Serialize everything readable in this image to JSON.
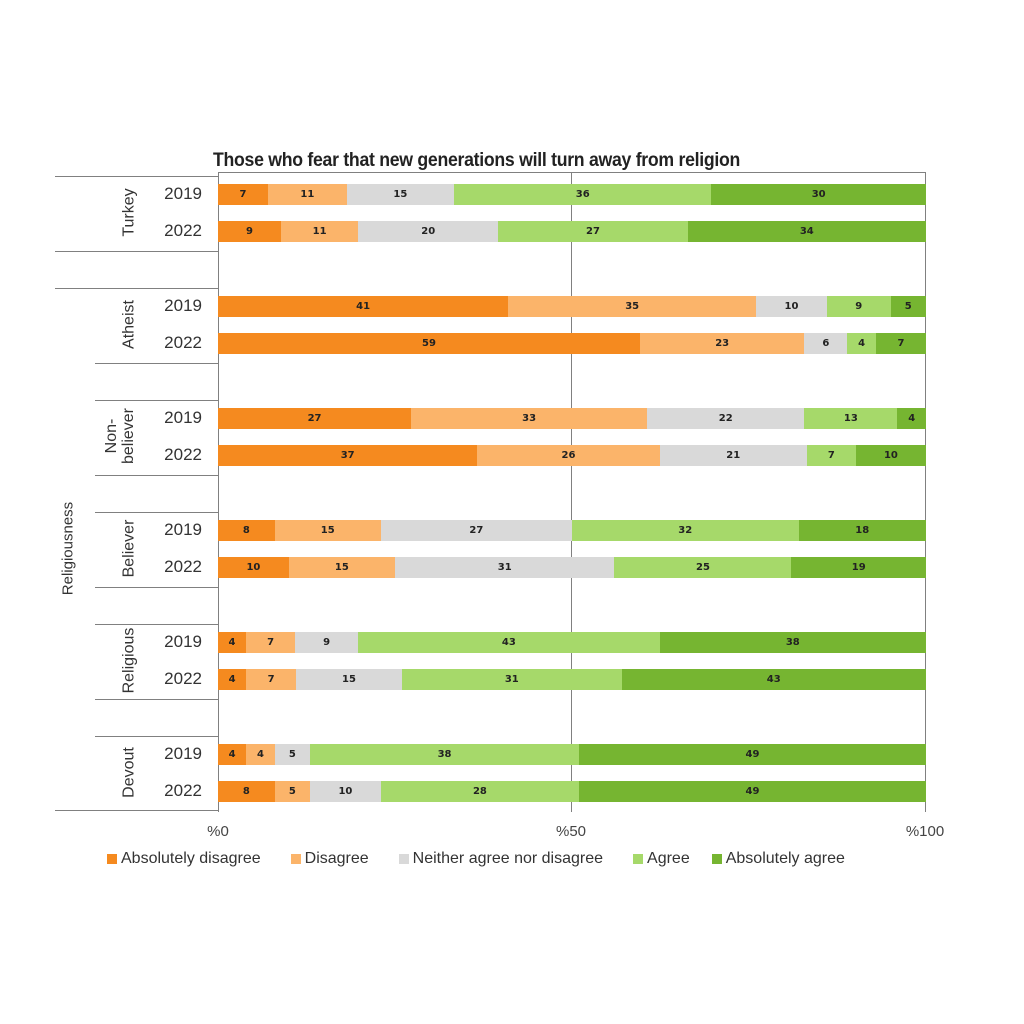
{
  "chart_data": {
    "type": "bar",
    "orientation": "horizontal",
    "stacked": true,
    "percent": true,
    "title": "Those who fear that new generations will turn away from religion",
    "xlabel": "",
    "ylabel": "Religiousness",
    "xlim": [
      0,
      100
    ],
    "x_ticks": [
      "%0",
      "%50",
      "%100"
    ],
    "legend_position": "bottom",
    "groups": [
      "Turkey",
      "Atheist",
      "Non-believer",
      "Believer",
      "Religious",
      "Devout"
    ],
    "categories": [
      "Turkey 2019",
      "Turkey 2022",
      "Atheist 2019",
      "Atheist 2022",
      "Non-believer 2019",
      "Non-believer 2022",
      "Believer 2019",
      "Believer 2022",
      "Religious 2019",
      "Religious 2022",
      "Devout 2019",
      "Devout 2022"
    ],
    "series": [
      {
        "name": "Absolutely disagree",
        "color": "#F58A1F",
        "values": [
          7,
          9,
          41,
          59,
          27,
          37,
          8,
          10,
          4,
          4,
          4,
          8
        ]
      },
      {
        "name": "Disagree",
        "color": "#FBB46A",
        "values": [
          11,
          11,
          35,
          23,
          33,
          26,
          15,
          15,
          7,
          7,
          4,
          5
        ]
      },
      {
        "name": "Neither agree nor disagree",
        "color": "#D9D9D9",
        "values": [
          15,
          20,
          10,
          6,
          22,
          21,
          27,
          31,
          9,
          15,
          5,
          10
        ]
      },
      {
        "name": "Agree",
        "color": "#A6D96A",
        "values": [
          36,
          27,
          9,
          4,
          13,
          7,
          32,
          25,
          43,
          31,
          38,
          28
        ]
      },
      {
        "name": "Absolutely agree",
        "color": "#76B531",
        "values": [
          30,
          34,
          5,
          7,
          4,
          10,
          18,
          19,
          38,
          43,
          49,
          49
        ]
      }
    ]
  },
  "title": "Those who fear that new generations will turn away from religion",
  "ylabel": "Religiousness",
  "ticks": [
    "%0",
    "%50",
    "%100"
  ],
  "group_labels": {
    "turkey": "Turkey",
    "atheist": "Atheist",
    "nonbeliever_1": "Non-",
    "nonbeliever_2": "believer",
    "believer": "Believer",
    "religious": "Religious",
    "devout": "Devout"
  },
  "years": [
    "2019",
    "2022"
  ],
  "legend": [
    "Absolutely disagree",
    "Disagree",
    "Neither agree nor disagree",
    "Agree",
    "Absolutely agree"
  ]
}
